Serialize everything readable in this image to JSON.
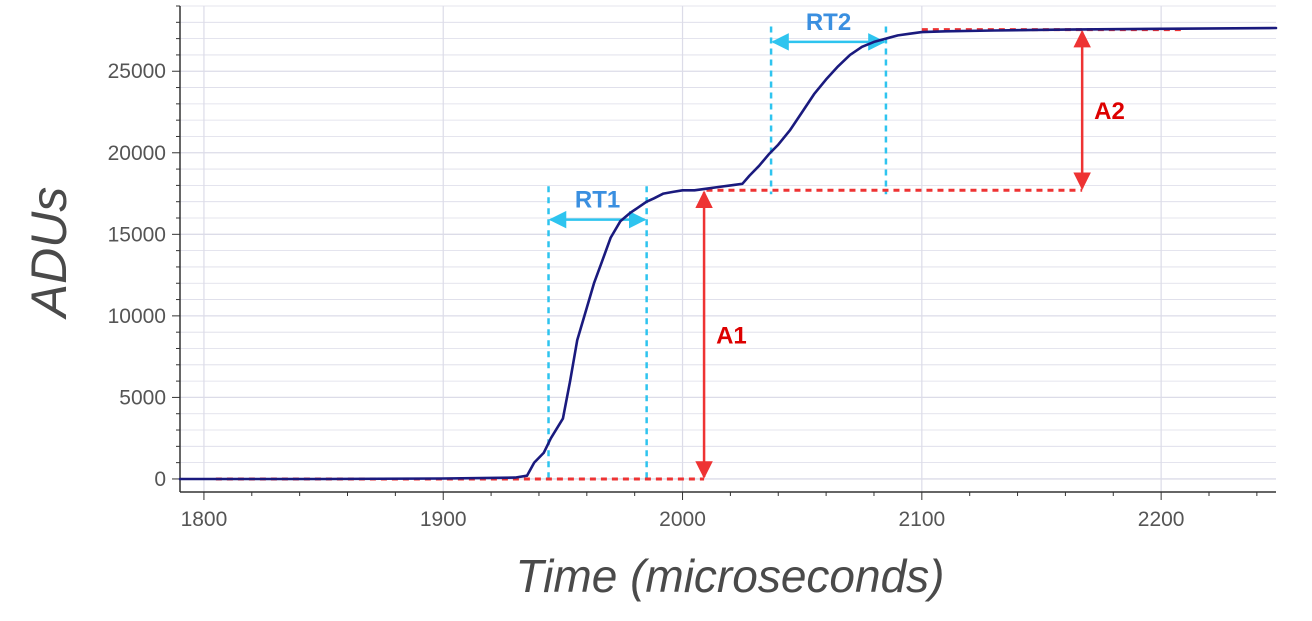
{
  "chart_data": {
    "type": "line",
    "title": "",
    "xlabel": "Time (microseconds)",
    "ylabel": "ADUs",
    "xlim": [
      1790,
      2248
    ],
    "ylim": [
      -800,
      29000
    ],
    "x_ticks": [
      1800,
      1900,
      2000,
      2100,
      2200
    ],
    "x_tick_labels": [
      "1800",
      "1900",
      "2000",
      "2100",
      "2200"
    ],
    "y_ticks": [
      0,
      5000,
      10000,
      15000,
      20000,
      25000
    ],
    "y_tick_labels": [
      "0",
      "5000",
      "10000",
      "15000",
      "20000",
      "25000"
    ],
    "x_minor_step": 20,
    "y_minor_step": 1000,
    "grid": true,
    "legend": "none",
    "colors": {
      "signal": "#1a1a7e",
      "amplitude": "#ee3333",
      "rise_time": "#2ec4ef",
      "rise_label": "#3a8fe0",
      "amp_label": "#dd0000",
      "grid": "#dcdce8",
      "axis": "#333333"
    },
    "series": [
      {
        "x": [
          1790,
          1800,
          1850,
          1900,
          1930,
          1935,
          1938,
          1942,
          1945,
          1950,
          1953,
          1956,
          1960,
          1963,
          1966,
          1970,
          1974,
          1978,
          1982,
          1985,
          1988,
          1992,
          1996,
          2000,
          2005,
          2010,
          2015,
          2020,
          2025,
          2028,
          2032,
          2036,
          2040,
          2045,
          2050,
          2055,
          2060,
          2065,
          2070,
          2075,
          2080,
          2085,
          2090,
          2095,
          2100,
          2110,
          2130,
          2160,
          2200,
          2248
        ],
        "y": [
          0,
          0,
          0,
          30,
          80,
          200,
          1000,
          1600,
          2500,
          3700,
          6000,
          8500,
          10500,
          12000,
          13200,
          14800,
          15800,
          16300,
          16700,
          17000,
          17200,
          17500,
          17600,
          17700,
          17700,
          17800,
          17900,
          18000,
          18100,
          18600,
          19200,
          19900,
          20500,
          21400,
          22500,
          23600,
          24500,
          25300,
          26000,
          26500,
          26800,
          27000,
          27200,
          27300,
          27400,
          27450,
          27500,
          27550,
          27600,
          27650
        ]
      }
    ],
    "annotations": [
      {
        "label": "RT1",
        "kind": "rise_time",
        "x_start": 1944,
        "x_end": 1985,
        "y_low": 0,
        "y_high": 17700,
        "arrow_y": 15900
      },
      {
        "label": "RT2",
        "kind": "rise_time",
        "x_start": 2037,
        "x_end": 2085,
        "y_low": 17700,
        "y_high": 27500,
        "arrow_y": 26800
      },
      {
        "label": "A1",
        "kind": "amplitude",
        "x": 2009,
        "y_low": 0,
        "y_high": 17700,
        "baseline_x_start": 1805
      },
      {
        "label": "A2",
        "kind": "amplitude",
        "x": 2167,
        "y_low": 17700,
        "y_high": 27550,
        "top_x_start": 2100,
        "top_x_end": 2210
      }
    ]
  }
}
